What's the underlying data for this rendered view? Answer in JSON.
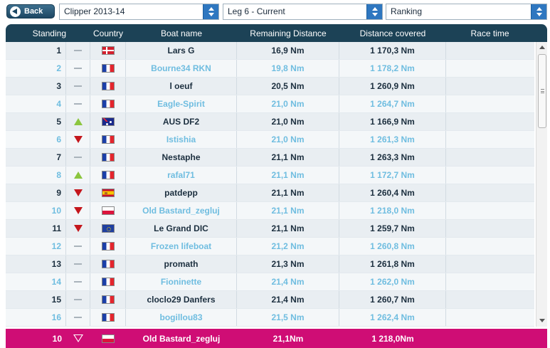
{
  "toolbar": {
    "back_label": "Back",
    "race_select": "Clipper 2013-14",
    "leg_select": "Leg 6 - Current",
    "view_select": "Ranking"
  },
  "table": {
    "headers": {
      "standing": "Standing",
      "country": "Country",
      "boat_name": "Boat name",
      "remaining": "Remaining Distance",
      "covered": "Distance covered",
      "race_time": "Race time"
    },
    "rows": [
      {
        "standing": "1",
        "trend": "same",
        "flag": "dk",
        "boat": "Lars G",
        "remaining": "16,9 Nm",
        "covered": "1 170,3 Nm",
        "race_time": ""
      },
      {
        "standing": "2",
        "trend": "same",
        "flag": "fr",
        "boat": "Bourne34 RKN",
        "remaining": "19,8 Nm",
        "covered": "1 178,2 Nm",
        "race_time": ""
      },
      {
        "standing": "3",
        "trend": "same",
        "flag": "fr",
        "boat": "l oeuf",
        "remaining": "20,5 Nm",
        "covered": "1 260,9 Nm",
        "race_time": ""
      },
      {
        "standing": "4",
        "trend": "same",
        "flag": "fr",
        "boat": "Eagle-Spirit",
        "remaining": "21,0 Nm",
        "covered": "1 264,7 Nm",
        "race_time": ""
      },
      {
        "standing": "5",
        "trend": "up",
        "flag": "au",
        "boat": "AUS DF2",
        "remaining": "21,0 Nm",
        "covered": "1 166,9 Nm",
        "race_time": ""
      },
      {
        "standing": "6",
        "trend": "down",
        "flag": "fr",
        "boat": "Istishia",
        "remaining": "21,0 Nm",
        "covered": "1 261,3 Nm",
        "race_time": ""
      },
      {
        "standing": "7",
        "trend": "same",
        "flag": "fr",
        "boat": "Nestaphe",
        "remaining": "21,1 Nm",
        "covered": "1 263,3 Nm",
        "race_time": ""
      },
      {
        "standing": "8",
        "trend": "up",
        "flag": "fr",
        "boat": "rafal71",
        "remaining": "21,1 Nm",
        "covered": "1 172,7 Nm",
        "race_time": ""
      },
      {
        "standing": "9",
        "trend": "down",
        "flag": "es",
        "boat": "patdepp",
        "remaining": "21,1 Nm",
        "covered": "1 260,4 Nm",
        "race_time": ""
      },
      {
        "standing": "10",
        "trend": "down",
        "flag": "pl",
        "boat": "Old Bastard_zegluj",
        "remaining": "21,1 Nm",
        "covered": "1 218,0 Nm",
        "race_time": ""
      },
      {
        "standing": "11",
        "trend": "down",
        "flag": "eu",
        "boat": "Le Grand DIC",
        "remaining": "21,1 Nm",
        "covered": "1 259,7 Nm",
        "race_time": ""
      },
      {
        "standing": "12",
        "trend": "same",
        "flag": "fr",
        "boat": "Frozen lifeboat",
        "remaining": "21,2 Nm",
        "covered": "1 260,8 Nm",
        "race_time": ""
      },
      {
        "standing": "13",
        "trend": "same",
        "flag": "fr",
        "boat": "promath",
        "remaining": "21,3 Nm",
        "covered": "1 261,8 Nm",
        "race_time": ""
      },
      {
        "standing": "14",
        "trend": "same",
        "flag": "fr",
        "boat": "Fioninette",
        "remaining": "21,4 Nm",
        "covered": "1 262,0 Nm",
        "race_time": ""
      },
      {
        "standing": "15",
        "trend": "same",
        "flag": "fr",
        "boat": "cloclo29 Danfers",
        "remaining": "21,4 Nm",
        "covered": "1 260,7 Nm",
        "race_time": ""
      },
      {
        "standing": "16",
        "trend": "same",
        "flag": "fr",
        "boat": "bogillou83",
        "remaining": "21,5 Nm",
        "covered": "1 262,4 Nm",
        "race_time": ""
      }
    ]
  },
  "my_boat": {
    "standing": "10",
    "trend": "down",
    "flag": "pl",
    "boat": "Old Bastard_zegluj",
    "remaining": "21,1Nm",
    "covered": "1 218,0Nm"
  },
  "colors": {
    "header_bg": "#1c4256",
    "highlight_row": "#cf0d75",
    "trend_up": "#8cc63f",
    "trend_down": "#c4161c",
    "alt_text": "#6fbde0"
  }
}
